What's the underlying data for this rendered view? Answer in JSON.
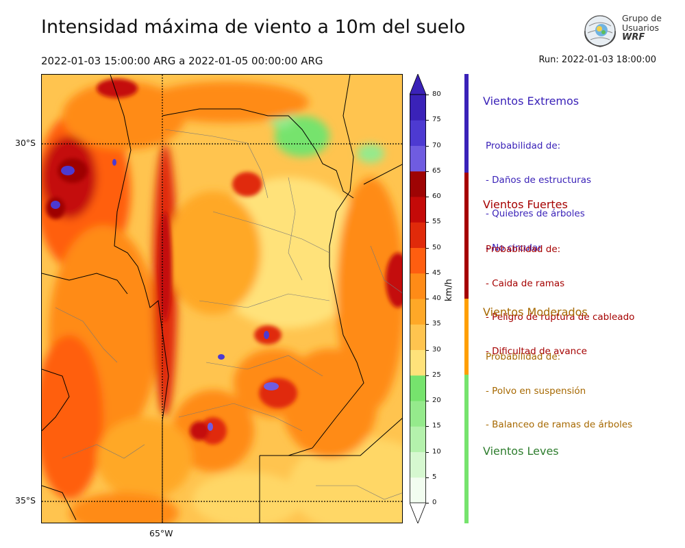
{
  "title": "Intensidad máxima de viento a 10m del suelo",
  "period": "2022-01-03 15:00:00 ARG  a  2022-01-05 00:00:00 ARG",
  "run": "Run: 2022-01-03 18:00:00",
  "logo": {
    "line1": "Grupo de",
    "line2": "Usuarios",
    "line3": "WRF"
  },
  "map": {
    "lat_labels": [
      "30°S",
      "35°S"
    ],
    "lon_labels": [
      "65°W"
    ]
  },
  "colorbar": {
    "unit": "km/h",
    "ticks": [
      "0",
      "5",
      "10",
      "15",
      "20",
      "25",
      "30",
      "35",
      "40",
      "45",
      "50",
      "55",
      "60",
      "65",
      "70",
      "75",
      "80"
    ],
    "colors": [
      "#f2fdf0",
      "#d6f8d0",
      "#b4f1ac",
      "#95ea8c",
      "#76e36d",
      "#ffe27a",
      "#ffc44f",
      "#ffa827",
      "#ff8b17",
      "#ff5e10",
      "#e02a0a",
      "#c40a08",
      "#9e0404",
      "#6f5ce0",
      "#4d3ad1",
      "#3a22b8"
    ],
    "top_color": "#3a22b8",
    "bottom_color": "#ffffff"
  },
  "categories": [
    {
      "title": "Vientos Extremos",
      "color": "#3a22b8",
      "text_color": "#3a22b8",
      "desc_lines": [
        "Probabilidad de:",
        "- Daños de estructuras",
        "- Quiebres de árboles",
        "- No circular"
      ]
    },
    {
      "title": "Vientos Fuertes",
      "color": "#a50000",
      "text_color": "#a50000",
      "desc_lines": [
        "Probabilidad de:",
        "- Caida de ramas",
        "- Peligro de ruptura de cableado",
        "- Dificultad de avance"
      ]
    },
    {
      "title": "Vientos Moderados",
      "color": "#ff9f00",
      "text_color": "#a66800",
      "desc_lines": [
        "Probabilidad de:",
        "- Polvo en suspensión",
        "- Balanceo de ramas de árboles"
      ]
    },
    {
      "title": "Vientos Leves",
      "color": "#76e36d",
      "text_color": "#2e7d2e",
      "desc_lines": []
    }
  ]
}
